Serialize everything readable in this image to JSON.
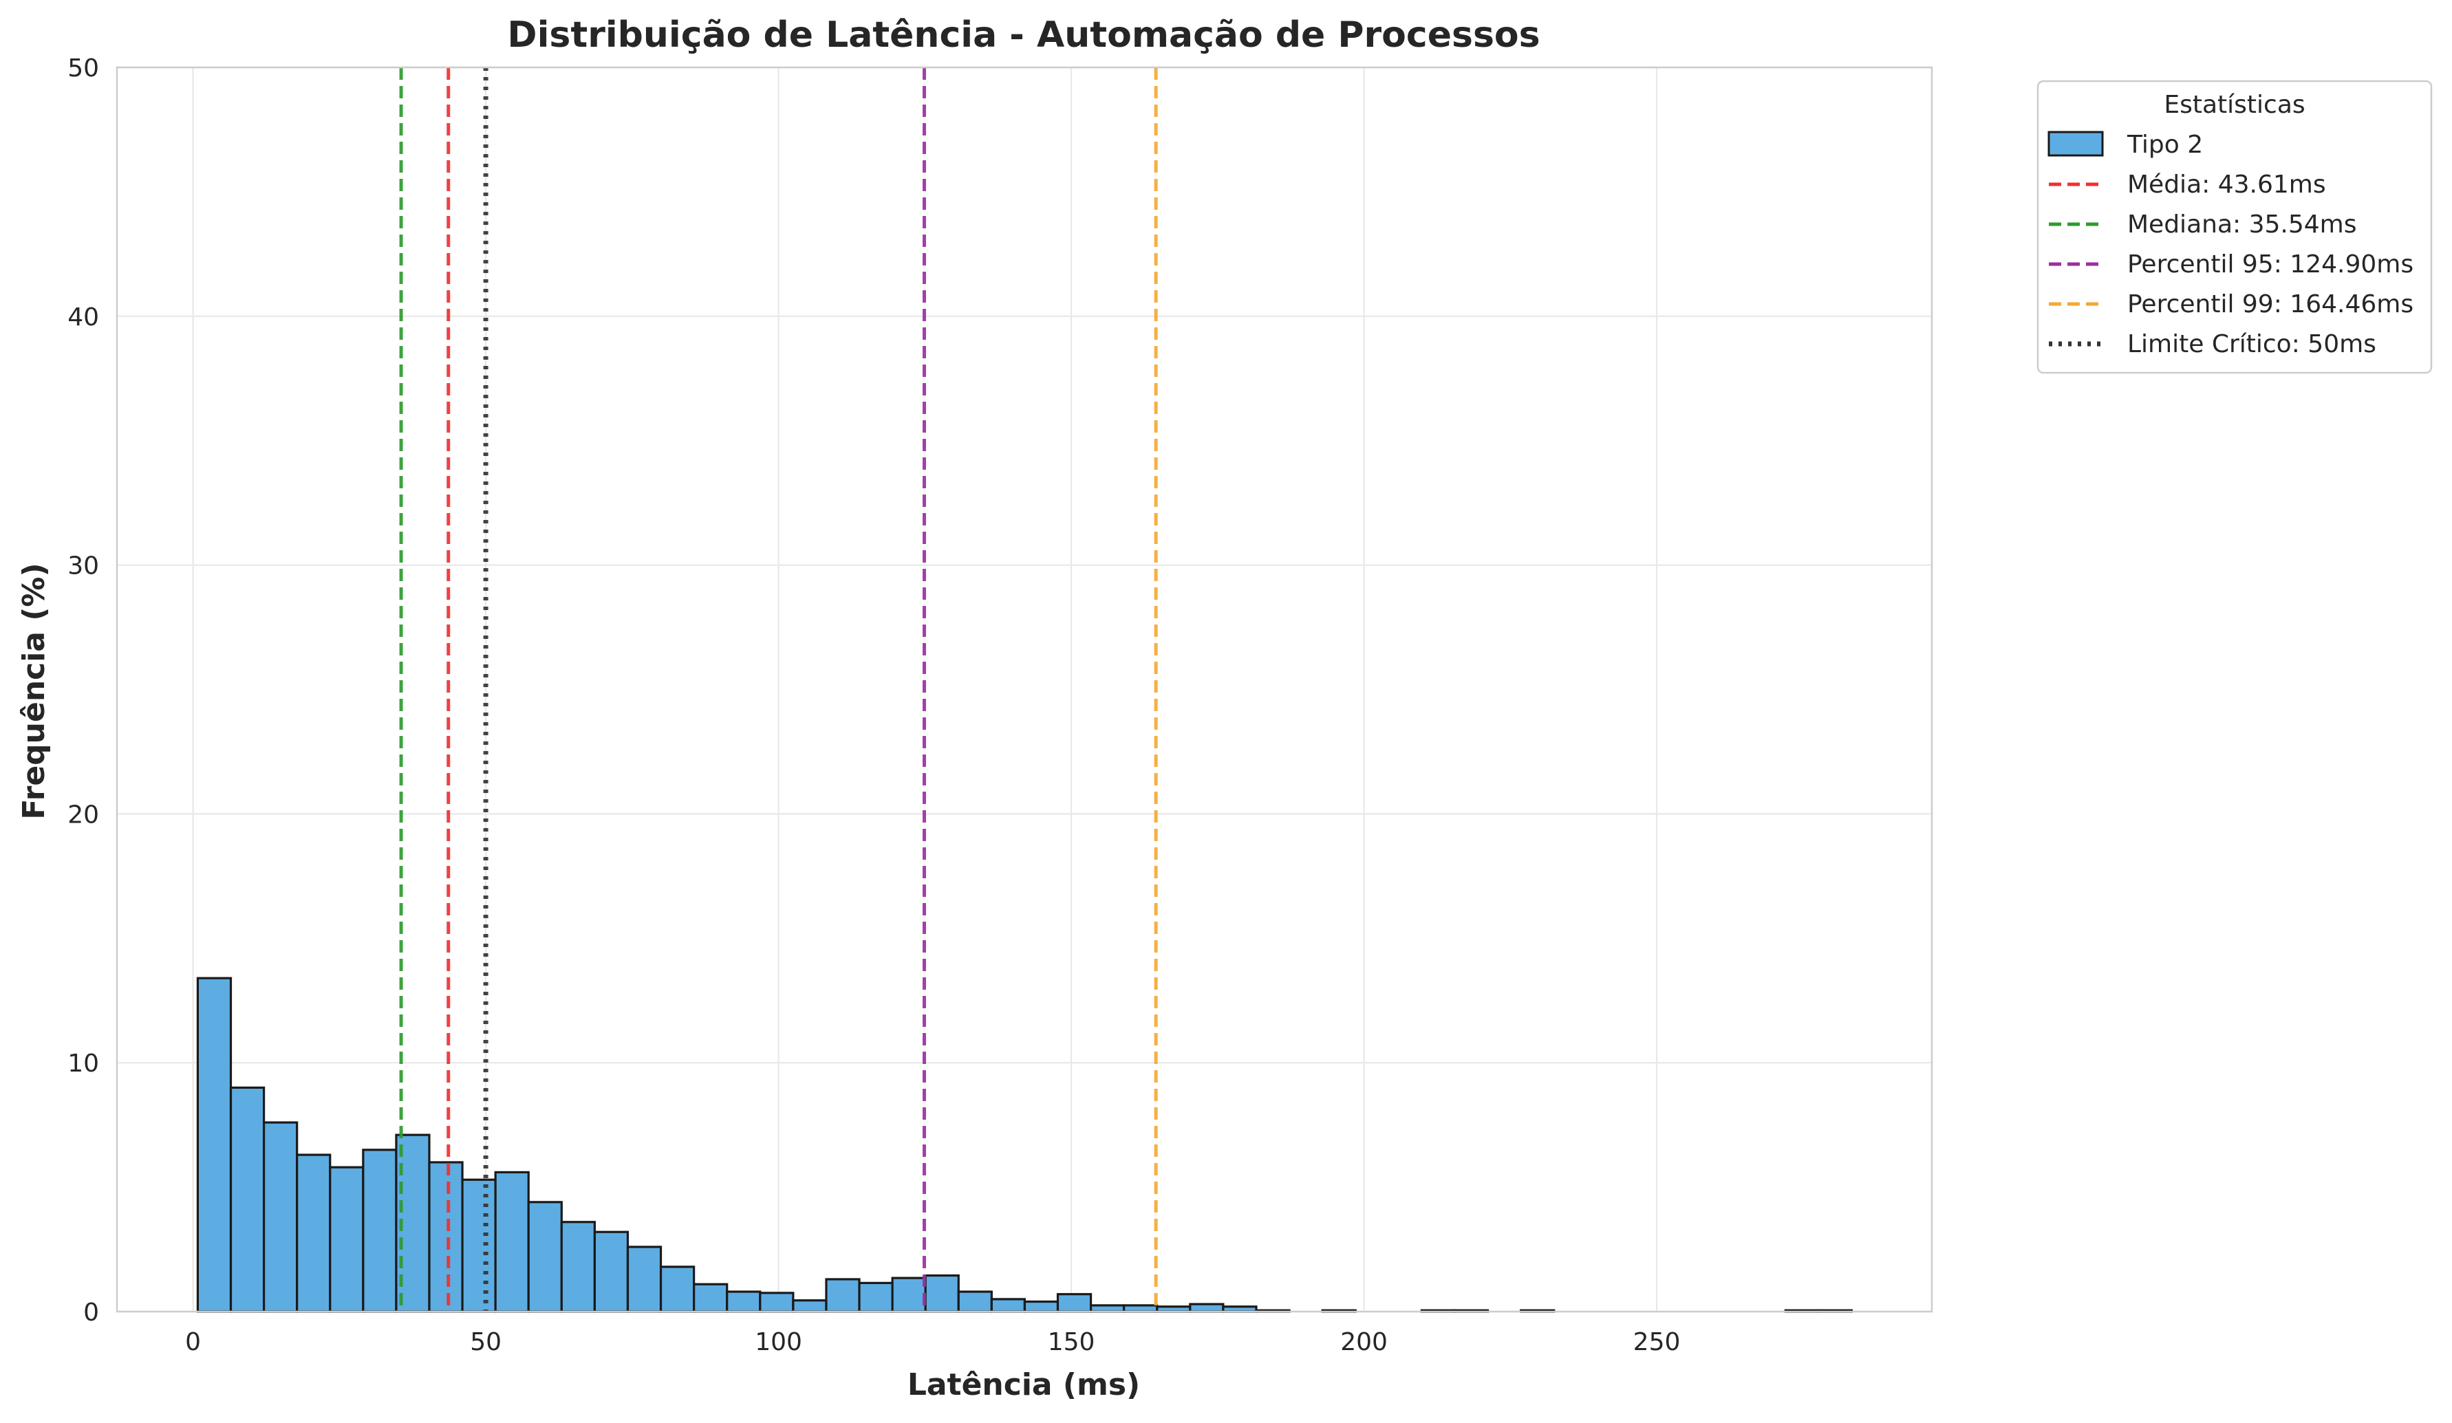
{
  "chart_data": {
    "type": "bar",
    "subtype": "histogram",
    "title": "Distribuição de Latência - Automação de Processos",
    "xlabel": "Latência (ms)",
    "ylabel": "Frequência (%)",
    "xlim": [
      -13,
      297
    ],
    "ylim": [
      0,
      50
    ],
    "xticks": [
      0,
      50,
      100,
      150,
      200,
      250
    ],
    "yticks": [
      0,
      10,
      20,
      30,
      40,
      50
    ],
    "grid": true,
    "legend_title": "Estatísticas",
    "legend_position": "outside-top-right",
    "bin_start": 0.8,
    "bin_width": 5.65,
    "series": [
      {
        "name": "Tipo 2",
        "color": "#5DADE2",
        "edgecolor": "#1a1a1a",
        "values": [
          13.4,
          9.0,
          7.6,
          6.3,
          5.8,
          6.5,
          7.1,
          6.0,
          5.3,
          5.6,
          4.4,
          3.6,
          3.2,
          2.6,
          1.8,
          1.1,
          0.8,
          0.75,
          0.45,
          1.3,
          1.15,
          1.35,
          1.45,
          0.8,
          0.5,
          0.4,
          0.7,
          0.25,
          0.25,
          0.2,
          0.3,
          0.2,
          0.05,
          0.0,
          0.05,
          0.0,
          0.0,
          0.05,
          0.05,
          0.0,
          0.05,
          0.0,
          0.0,
          0.0,
          0.0,
          0.0,
          0.0,
          0.0,
          0.05,
          0.05
        ]
      }
    ],
    "reference_lines": [
      {
        "label": "Média: 43.61ms",
        "value": 43.61,
        "color": "#F03030",
        "style": "dashed"
      },
      {
        "label": "Mediana: 35.54ms",
        "value": 35.54,
        "color": "#2E9A2E",
        "style": "dashed"
      },
      {
        "label": "Percentil 95: 124.90ms",
        "value": 124.9,
        "color": "#9B2FA0",
        "style": "dashed"
      },
      {
        "label": "Percentil 99: 164.46ms",
        "value": 164.46,
        "color": "#F5A833",
        "style": "dashed"
      },
      {
        "label": "Limite Crítico: 50ms",
        "value": 50,
        "color": "#333333",
        "style": "dotted"
      }
    ]
  }
}
